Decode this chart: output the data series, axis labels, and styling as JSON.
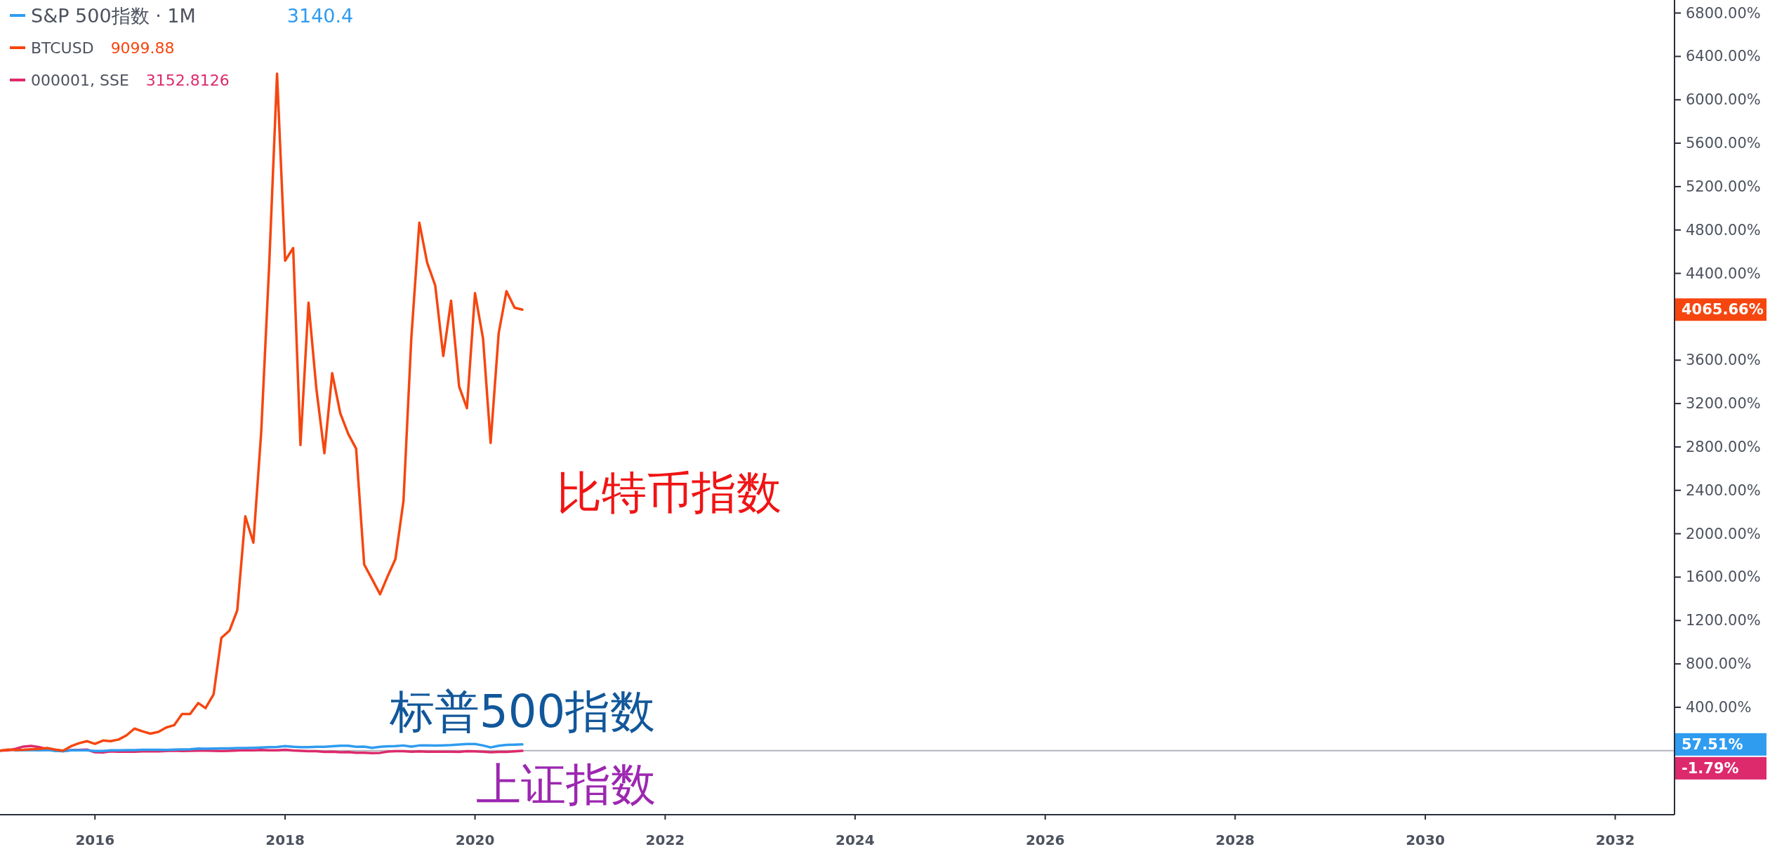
{
  "chart_data": {
    "type": "line",
    "x": [
      "2015-01",
      "2015-02",
      "2015-03",
      "2015-04",
      "2015-05",
      "2015-06",
      "2015-07",
      "2015-08",
      "2015-09",
      "2015-10",
      "2015-11",
      "2015-12",
      "2016-01",
      "2016-02",
      "2016-03",
      "2016-04",
      "2016-05",
      "2016-06",
      "2016-07",
      "2016-08",
      "2016-09",
      "2016-10",
      "2016-11",
      "2016-12",
      "2017-01",
      "2017-02",
      "2017-03",
      "2017-04",
      "2017-05",
      "2017-06",
      "2017-07",
      "2017-08",
      "2017-09",
      "2017-10",
      "2017-11",
      "2017-12",
      "2018-01",
      "2018-02",
      "2018-03",
      "2018-04",
      "2018-05",
      "2018-06",
      "2018-07",
      "2018-08",
      "2018-09",
      "2018-10",
      "2018-11",
      "2018-12",
      "2019-01",
      "2019-02",
      "2019-03",
      "2019-04",
      "2019-05",
      "2019-06",
      "2019-07",
      "2019-08",
      "2019-09",
      "2019-10",
      "2019-11",
      "2019-12",
      "2020-01",
      "2020-02",
      "2020-03",
      "2020-04",
      "2020-05",
      "2020-06",
      "2020-07"
    ],
    "series": [
      {
        "name": "S&P 500指数 · 1M",
        "color": "#2f9cf0",
        "values": [
          null,
          null,
          4,
          5,
          6,
          3,
          6,
          -1,
          -4,
          4,
          4,
          3,
          -3,
          -3,
          3,
          4,
          5,
          5,
          9,
          9,
          9,
          7,
          10,
          12,
          14,
          19,
          18,
          20,
          21,
          22,
          24,
          24,
          26,
          29,
          33,
          34,
          42,
          36,
          32,
          33,
          36,
          36,
          41,
          46,
          46,
          36,
          38,
          26,
          36,
          40,
          42,
          48,
          38,
          48,
          49,
          47,
          49,
          52,
          57,
          62,
          62,
          48,
          30,
          46,
          53,
          55,
          58
        ]
      },
      {
        "name": "BTCUSD",
        "color": "#f6460f",
        "values": [
          0,
          10,
          6,
          8,
          13,
          16,
          25,
          10,
          0,
          41,
          69,
          88,
          63,
          94,
          88,
          103,
          141,
          204,
          179,
          157,
          173,
          214,
          236,
          339,
          339,
          439,
          392,
          518,
          1040,
          1106,
          1293,
          2161,
          1918,
          2932,
          4487,
          6241,
          4517,
          4633,
          2818,
          4130,
          3340,
          2742,
          3480,
          3111,
          2918,
          2784,
          1716,
          1583,
          1442,
          1618,
          1766,
          2303,
          3797,
          4868,
          4499,
          4289,
          3638,
          4148,
          3357,
          3157,
          4218,
          3797,
          2837,
          3849,
          4236,
          4084,
          4066
        ]
      },
      {
        "name": "000001, SSE",
        "color": "#dd2a6c",
        "values": [
          0,
          3,
          17,
          38,
          44,
          33,
          14,
          0,
          -5,
          5,
          7,
          10,
          -15,
          -16,
          -6,
          -9,
          -9,
          -9,
          -7,
          -4,
          -6,
          -3,
          1,
          -3,
          -2,
          1,
          0,
          -2,
          -3,
          -1,
          2,
          5,
          4,
          6,
          3,
          3,
          8,
          2,
          -1,
          -4,
          -4,
          -11,
          -10,
          -15,
          -12,
          -19,
          -19,
          -22,
          -20,
          -8,
          -4,
          -4,
          -10,
          -7,
          -9,
          -10,
          -10,
          -9,
          -11,
          -5,
          -7,
          -10,
          -14,
          -11,
          -11,
          -7,
          -2
        ]
      }
    ],
    "xlim": [
      "2015-01-01",
      "2032-08-16"
    ],
    "xticks": [
      "2016",
      "2018",
      "2020",
      "2022",
      "2024",
      "2026",
      "2028",
      "2030",
      "2032"
    ],
    "ylim": [
      -590,
      6920
    ],
    "yticks": [
      {
        "value": 400,
        "label": "400.00%"
      },
      {
        "value": 800,
        "label": "800.00%"
      },
      {
        "value": 1200,
        "label": "1200.00%"
      },
      {
        "value": 1600,
        "label": "1600.00%"
      },
      {
        "value": 2000,
        "label": "2000.00%"
      },
      {
        "value": 2400,
        "label": "2400.00%"
      },
      {
        "value": 2800,
        "label": "2800.00%"
      },
      {
        "value": 3200,
        "label": "3200.00%"
      },
      {
        "value": 3600,
        "label": "3600.00%"
      },
      {
        "value": 4000,
        "label": null
      },
      {
        "value": 4400,
        "label": "4400.00%"
      },
      {
        "value": 4800,
        "label": "4800.00%"
      },
      {
        "value": 5200,
        "label": "5200.00%"
      },
      {
        "value": 5600,
        "label": "5600.00%"
      },
      {
        "value": 6000,
        "label": "6000.00%"
      },
      {
        "value": 6400,
        "label": "6400.00%"
      },
      {
        "value": 6800,
        "label": "6800.00%"
      }
    ],
    "ref_lines": [
      {
        "axis": "y",
        "value": 0,
        "color": "#b2b5be"
      }
    ],
    "legend": "top left",
    "grid": false,
    "line_style": "solid",
    "marker": "none",
    "annotations": [
      "3140.4",
      "9099.88",
      "3152.8126",
      "标普500指数",
      "比特币指数",
      "上证指数",
      "57.51%",
      "4065.66%",
      "-1.79%"
    ]
  }
}
